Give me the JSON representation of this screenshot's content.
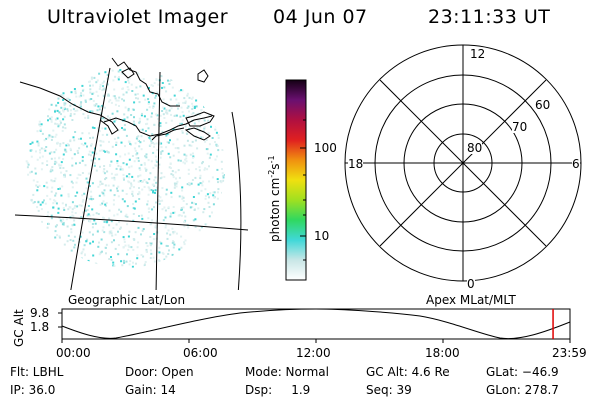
{
  "header": {
    "instrument": "Ultraviolet Imager",
    "date": "04 Jun 07",
    "time": "23:11:33 UT"
  },
  "colorbar": {
    "unit_main": "photon cm",
    "unit_exp1": "-2",
    "unit_mid": "s",
    "unit_exp2": "-1",
    "ticks": [
      "100",
      "10"
    ],
    "colors": [
      "#ffffff",
      "#c8e6e6",
      "#40d8d8",
      "#30d860",
      "#a0e020",
      "#f0e010",
      "#f09010",
      "#e02020",
      "#b01040",
      "#6a1070",
      "#140014"
    ]
  },
  "polar": {
    "ring_labels": [
      "80",
      "70",
      "60"
    ],
    "mlt_labels": [
      "12",
      "18",
      "6",
      "0"
    ]
  },
  "map_labels": {
    "left": "Geographic Lat/Lon",
    "right": "Apex MLat/MLT"
  },
  "altitude_plot": {
    "ylabel": "GC Alt",
    "yticks": [
      "9.8",
      "1.8"
    ],
    "xticks": [
      "00:00",
      "06:00",
      "12:00",
      "18:00",
      "23:59"
    ],
    "current_time_marker": "23:11",
    "marker_color": "#e00000"
  },
  "footer": {
    "row1": [
      "Flt: LBHL",
      "Door: Open",
      "Mode: Normal",
      "GC Alt: 4.6 Re",
      "GLat: −46.9"
    ],
    "row2": [
      "IP: 36.0",
      "Gain: 14",
      "Dsp:     1.9",
      "Seq: 39",
      "GLon: 278.7"
    ]
  }
}
